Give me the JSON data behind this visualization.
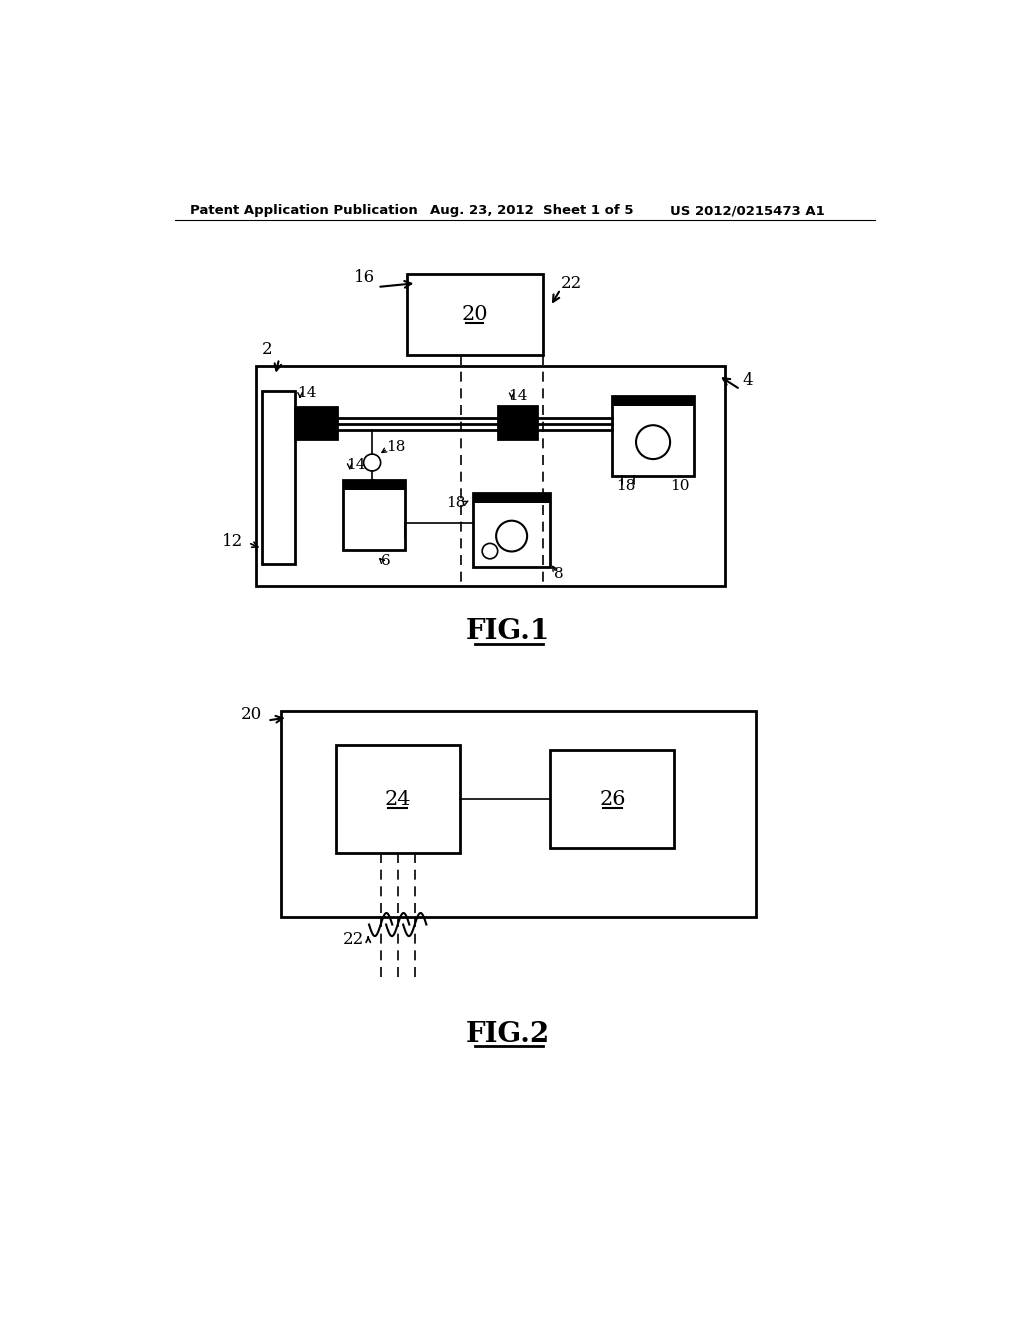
{
  "bg_color": "#ffffff",
  "header_left": "Patent Application Publication",
  "header_mid": "Aug. 23, 2012  Sheet 1 of 5",
  "header_right": "US 2012/0215473 A1",
  "fig1_title": "FIG.1",
  "fig2_title": "FIG.2",
  "label_20_top": "20",
  "label_16": "16",
  "label_22_top": "22",
  "label_2": "2",
  "label_4": "4",
  "label_12": "12",
  "label_6": "6",
  "label_8": "8",
  "label_10": "10",
  "label_14a": "14",
  "label_14b": "14",
  "label_14c": "14",
  "label_18a": "18",
  "label_18b": "18",
  "label_18c": "18",
  "label_18d": "18",
  "label_24": "24",
  "label_26": "26",
  "label_20_bot": "20",
  "label_22_bot": "22"
}
